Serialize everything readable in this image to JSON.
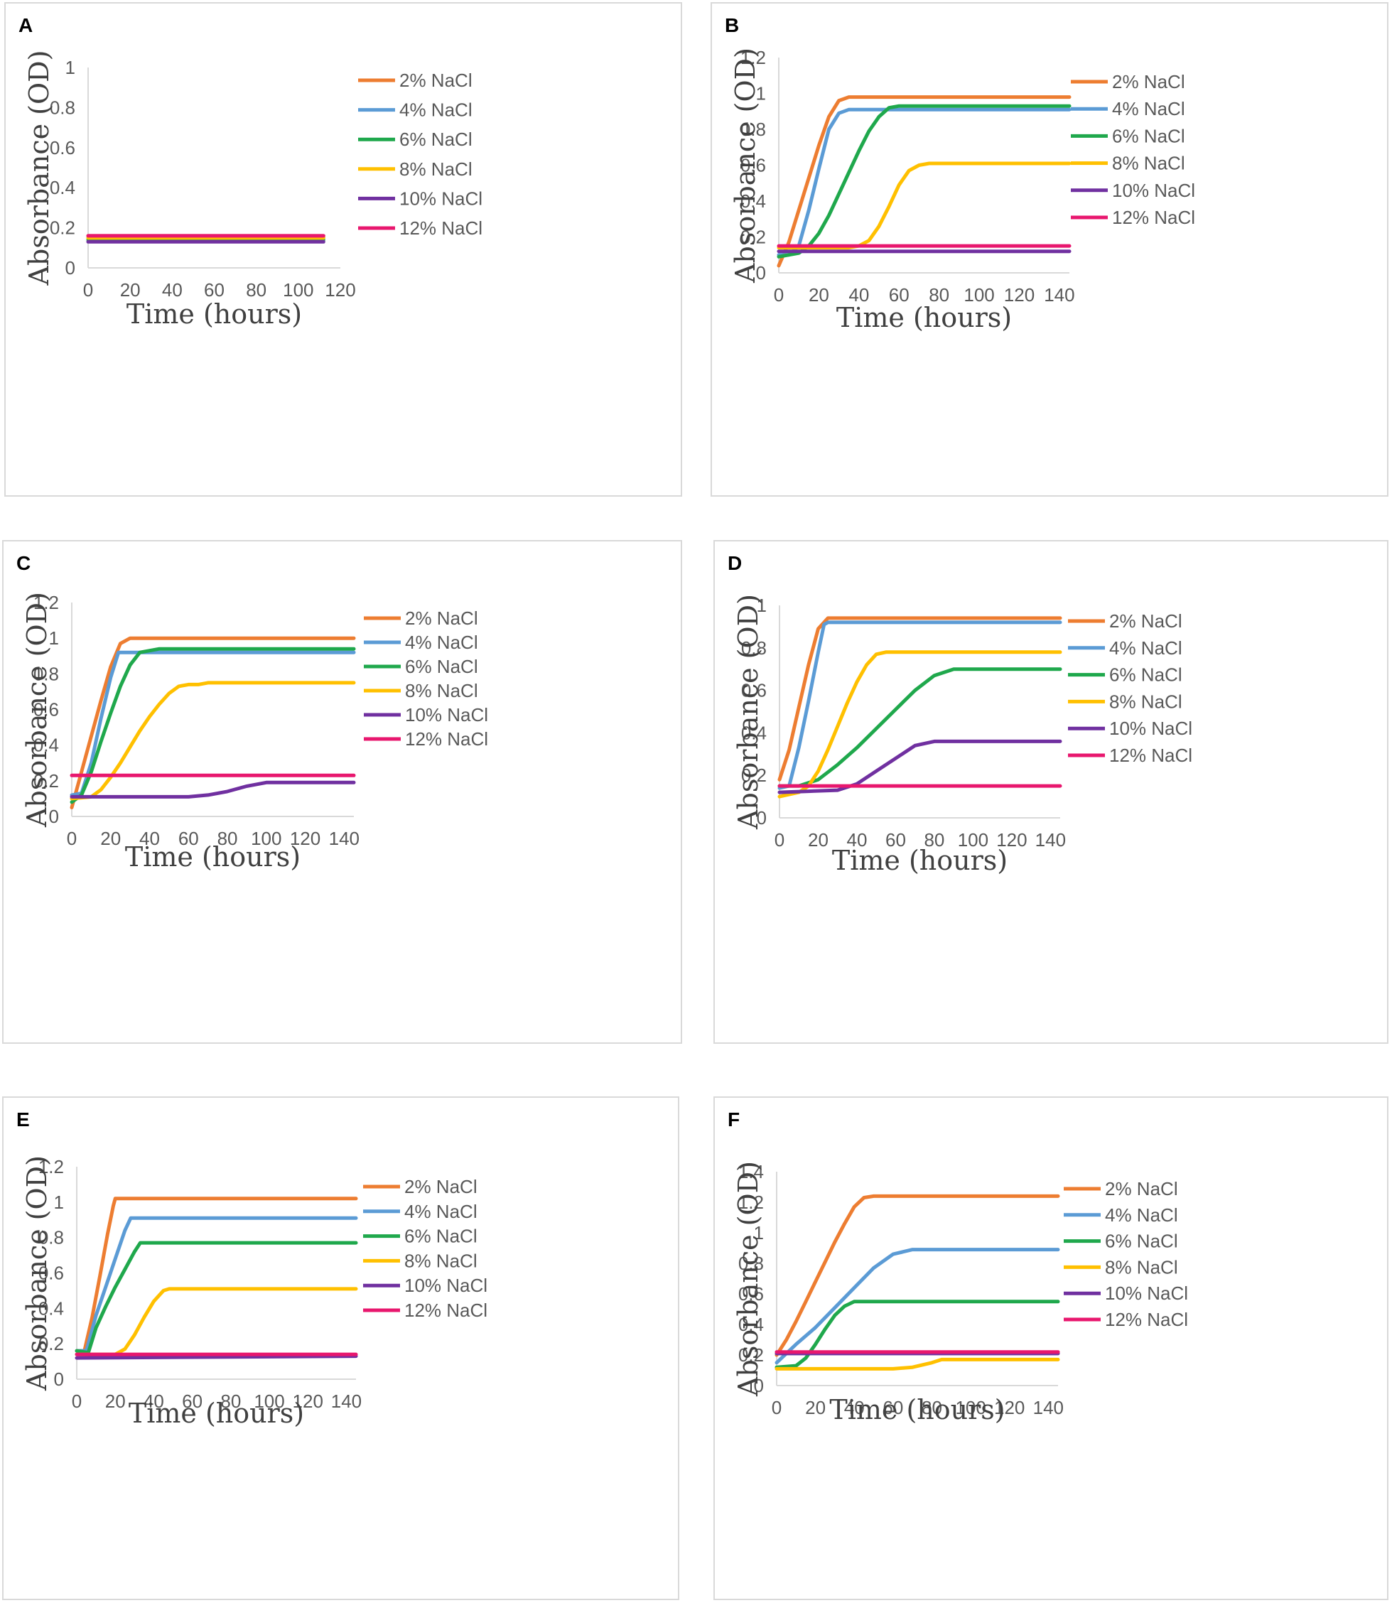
{
  "colors": {
    "2% NaCl": "#ED7D31",
    "4% NaCl": "#5B9BD5",
    "6% NaCl": "#1FA84C",
    "8% NaCl": "#FFC000",
    "10% NaCl": "#7030A0",
    "12% NaCl": "#E8176E"
  },
  "chart_data": [
    {
      "panel": "A",
      "type": "line",
      "xlabel": "Time (hours)",
      "ylabel": "Absorbance (OD)",
      "xlim": [
        0,
        120
      ],
      "xticks": [
        0,
        20,
        40,
        60,
        80,
        100,
        120
      ],
      "ylim": [
        0,
        1
      ],
      "yticks": [
        0,
        0.2,
        0.4,
        0.6,
        0.8,
        1
      ],
      "legend": [
        "2% NaCl",
        "4% NaCl",
        "6% NaCl",
        "8% NaCl",
        "10% NaCl",
        "12% NaCl"
      ],
      "series": [
        {
          "name": "2% NaCl",
          "x": [
            0,
            112
          ],
          "y": [
            0.16,
            0.16
          ]
        },
        {
          "name": "4% NaCl",
          "x": [
            0,
            112
          ],
          "y": [
            0.15,
            0.15
          ]
        },
        {
          "name": "6% NaCl",
          "x": [
            0,
            112
          ],
          "y": [
            0.14,
            0.14
          ]
        },
        {
          "name": "8% NaCl",
          "x": [
            0,
            112
          ],
          "y": [
            0.15,
            0.15
          ]
        },
        {
          "name": "10% NaCl",
          "x": [
            0,
            112
          ],
          "y": [
            0.13,
            0.13
          ]
        },
        {
          "name": "12% NaCl",
          "x": [
            0,
            112
          ],
          "y": [
            0.16,
            0.16
          ]
        }
      ]
    },
    {
      "panel": "B",
      "type": "line",
      "xlabel": "Time (hours)",
      "ylabel": "Absorbance (OD)",
      "xlim": [
        0,
        145
      ],
      "xticks": [
        0,
        20,
        40,
        60,
        80,
        100,
        120,
        140
      ],
      "ylim": [
        0,
        1.2
      ],
      "yticks": [
        0,
        0.2,
        0.4,
        0.6,
        0.8,
        1,
        1.2
      ],
      "legend": [
        "2% NaCl",
        "4% NaCl",
        "6% NaCl",
        "8% NaCl",
        "10% NaCl",
        "12% NaCl"
      ],
      "series": [
        {
          "name": "2% NaCl",
          "x": [
            0,
            5,
            10,
            15,
            20,
            25,
            30,
            35,
            40,
            145
          ],
          "y": [
            0.04,
            0.17,
            0.35,
            0.53,
            0.71,
            0.87,
            0.96,
            0.98,
            0.98,
            0.98
          ]
        },
        {
          "name": "4% NaCl",
          "x": [
            0,
            5,
            10,
            15,
            20,
            25,
            30,
            35,
            145
          ],
          "y": [
            0.1,
            0.1,
            0.15,
            0.35,
            0.58,
            0.8,
            0.89,
            0.91,
            0.91
          ]
        },
        {
          "name": "6% NaCl",
          "x": [
            0,
            10,
            15,
            20,
            25,
            30,
            35,
            40,
            45,
            50,
            55,
            60,
            65,
            145
          ],
          "y": [
            0.09,
            0.11,
            0.15,
            0.22,
            0.32,
            0.44,
            0.56,
            0.68,
            0.79,
            0.87,
            0.92,
            0.93,
            0.93,
            0.93
          ]
        },
        {
          "name": "8% NaCl",
          "x": [
            0,
            35,
            40,
            45,
            50,
            55,
            60,
            65,
            70,
            75,
            145
          ],
          "y": [
            0.14,
            0.14,
            0.15,
            0.18,
            0.26,
            0.37,
            0.49,
            0.57,
            0.6,
            0.61,
            0.61
          ]
        },
        {
          "name": "10% NaCl",
          "x": [
            0,
            145
          ],
          "y": [
            0.12,
            0.12
          ]
        },
        {
          "name": "12% NaCl",
          "x": [
            0,
            145
          ],
          "y": [
            0.15,
            0.15
          ]
        }
      ]
    },
    {
      "panel": "C",
      "type": "line",
      "xlabel": "Time (hours)",
      "ylabel": "Absorbance (OD)",
      "xlim": [
        0,
        145
      ],
      "xticks": [
        0,
        20,
        40,
        60,
        80,
        100,
        120,
        140
      ],
      "ylim": [
        0,
        1.2
      ],
      "yticks": [
        0,
        0.2,
        0.4,
        0.6,
        0.8,
        1,
        1.2
      ],
      "legend": [
        "2% NaCl",
        "4% NaCl",
        "6% NaCl",
        "8% NaCl",
        "10% NaCl",
        "12% NaCl"
      ],
      "series": [
        {
          "name": "2% NaCl",
          "x": [
            0,
            5,
            10,
            15,
            20,
            25,
            30,
            35,
            145
          ],
          "y": [
            0.05,
            0.25,
            0.45,
            0.65,
            0.84,
            0.97,
            1.0,
            1.0,
            1.0
          ]
        },
        {
          "name": "4% NaCl",
          "x": [
            0,
            5,
            10,
            15,
            20,
            24,
            26,
            145
          ],
          "y": [
            0.12,
            0.13,
            0.3,
            0.55,
            0.78,
            0.92,
            0.92,
            0.92
          ]
        },
        {
          "name": "6% NaCl",
          "x": [
            0,
            5,
            10,
            15,
            20,
            25,
            30,
            35,
            40,
            45,
            50,
            145
          ],
          "y": [
            0.08,
            0.12,
            0.25,
            0.42,
            0.58,
            0.73,
            0.85,
            0.92,
            0.93,
            0.94,
            0.94,
            0.94
          ]
        },
        {
          "name": "8% NaCl",
          "x": [
            0,
            10,
            15,
            20,
            25,
            30,
            35,
            40,
            45,
            50,
            55,
            60,
            65,
            70,
            145
          ],
          "y": [
            0.1,
            0.11,
            0.15,
            0.22,
            0.3,
            0.39,
            0.48,
            0.56,
            0.63,
            0.69,
            0.73,
            0.74,
            0.74,
            0.75,
            0.75
          ]
        },
        {
          "name": "10% NaCl",
          "x": [
            0,
            60,
            70,
            80,
            90,
            100,
            110,
            145
          ],
          "y": [
            0.11,
            0.11,
            0.12,
            0.14,
            0.17,
            0.19,
            0.19,
            0.19
          ]
        },
        {
          "name": "12% NaCl",
          "x": [
            0,
            145
          ],
          "y": [
            0.23,
            0.23
          ]
        }
      ]
    },
    {
      "panel": "D",
      "type": "line",
      "xlabel": "Time (hours)",
      "ylabel": "Absorbance (OD)",
      "xlim": [
        0,
        145
      ],
      "xticks": [
        0,
        20,
        40,
        60,
        80,
        100,
        120,
        140
      ],
      "ylim": [
        0,
        1
      ],
      "yticks": [
        0,
        0.2,
        0.4,
        0.6,
        0.8,
        1
      ],
      "legend": [
        "2% NaCl",
        "4% NaCl",
        "6% NaCl",
        "8% NaCl",
        "10% NaCl",
        "12% NaCl"
      ],
      "series": [
        {
          "name": "2% NaCl",
          "x": [
            0,
            5,
            10,
            15,
            20,
            25,
            30,
            145
          ],
          "y": [
            0.18,
            0.32,
            0.52,
            0.72,
            0.89,
            0.94,
            0.94,
            0.94
          ]
        },
        {
          "name": "4% NaCl",
          "x": [
            0,
            5,
            10,
            15,
            20,
            23,
            25,
            145
          ],
          "y": [
            0.14,
            0.15,
            0.33,
            0.55,
            0.78,
            0.91,
            0.92,
            0.92
          ]
        },
        {
          "name": "6% NaCl",
          "x": [
            0,
            10,
            20,
            30,
            40,
            50,
            60,
            70,
            80,
            90,
            100,
            145
          ],
          "y": [
            0.15,
            0.15,
            0.18,
            0.25,
            0.33,
            0.42,
            0.51,
            0.6,
            0.67,
            0.7,
            0.7,
            0.7
          ]
        },
        {
          "name": "8% NaCl",
          "x": [
            0,
            10,
            15,
            20,
            25,
            30,
            35,
            40,
            45,
            50,
            55,
            60,
            65,
            145
          ],
          "y": [
            0.1,
            0.12,
            0.15,
            0.22,
            0.32,
            0.43,
            0.54,
            0.64,
            0.72,
            0.77,
            0.78,
            0.78,
            0.78,
            0.78
          ]
        },
        {
          "name": "10% NaCl",
          "x": [
            0,
            30,
            40,
            50,
            60,
            70,
            80,
            90,
            145
          ],
          "y": [
            0.12,
            0.13,
            0.16,
            0.22,
            0.28,
            0.34,
            0.36,
            0.36,
            0.36
          ]
        },
        {
          "name": "12% NaCl",
          "x": [
            0,
            145
          ],
          "y": [
            0.15,
            0.15
          ]
        }
      ]
    },
    {
      "panel": "E",
      "type": "line",
      "xlabel": "Time (hours)",
      "ylabel": "Absorbance (OD)",
      "xlim": [
        0,
        145
      ],
      "xticks": [
        0,
        20,
        40,
        60,
        80,
        100,
        120,
        140
      ],
      "ylim": [
        0,
        1.2
      ],
      "yticks": [
        0,
        0.2,
        0.4,
        0.6,
        0.8,
        1,
        1.2
      ],
      "legend": [
        "2% NaCl",
        "4% NaCl",
        "6% NaCl",
        "8% NaCl",
        "10% NaCl",
        "12% NaCl"
      ],
      "series": [
        {
          "name": "2% NaCl",
          "x": [
            0,
            4,
            8,
            12,
            16,
            19,
            20,
            22,
            145
          ],
          "y": [
            0.16,
            0.16,
            0.35,
            0.58,
            0.82,
            0.98,
            1.02,
            1.02,
            1.02
          ]
        },
        {
          "name": "4% NaCl",
          "x": [
            0,
            5,
            10,
            15,
            20,
            25,
            28,
            30,
            145
          ],
          "y": [
            0.16,
            0.16,
            0.36,
            0.52,
            0.68,
            0.84,
            0.91,
            0.91,
            0.91
          ]
        },
        {
          "name": "6% NaCl",
          "x": [
            0,
            6,
            10,
            15,
            20,
            25,
            30,
            33,
            35,
            145
          ],
          "y": [
            0.16,
            0.15,
            0.29,
            0.41,
            0.52,
            0.62,
            0.72,
            0.77,
            0.77,
            0.77
          ]
        },
        {
          "name": "8% NaCl",
          "x": [
            0,
            20,
            25,
            30,
            35,
            40,
            45,
            48,
            50,
            145
          ],
          "y": [
            0.14,
            0.14,
            0.17,
            0.25,
            0.35,
            0.44,
            0.5,
            0.51,
            0.51,
            0.51
          ]
        },
        {
          "name": "10% NaCl",
          "x": [
            0,
            145
          ],
          "y": [
            0.12,
            0.13
          ]
        },
        {
          "name": "12% NaCl",
          "x": [
            0,
            145
          ],
          "y": [
            0.14,
            0.14
          ]
        }
      ]
    },
    {
      "panel": "F",
      "type": "line",
      "xlabel": "Time (hours)",
      "ylabel": "Absorbance (OD)",
      "xlim": [
        0,
        145
      ],
      "xticks": [
        0,
        20,
        40,
        60,
        80,
        100,
        120,
        140
      ],
      "ylim": [
        0,
        1.4
      ],
      "yticks": [
        0,
        0.2,
        0.4,
        0.6,
        0.8,
        1,
        1.2,
        1.4
      ],
      "legend": [
        "2% NaCl",
        "4% NaCl",
        "6% NaCl",
        "8% NaCl",
        "10% NaCl",
        "12% NaCl"
      ],
      "series": [
        {
          "name": "2% NaCl",
          "x": [
            0,
            5,
            10,
            15,
            20,
            25,
            30,
            35,
            40,
            45,
            50,
            55,
            145
          ],
          "y": [
            0.2,
            0.3,
            0.42,
            0.55,
            0.68,
            0.81,
            0.94,
            1.06,
            1.17,
            1.23,
            1.24,
            1.24,
            1.24
          ]
        },
        {
          "name": "4% NaCl",
          "x": [
            0,
            10,
            20,
            30,
            40,
            50,
            60,
            70,
            80,
            145
          ],
          "y": [
            0.15,
            0.27,
            0.38,
            0.51,
            0.64,
            0.77,
            0.86,
            0.89,
            0.89,
            0.89
          ]
        },
        {
          "name": "6% NaCl",
          "x": [
            0,
            10,
            15,
            20,
            25,
            30,
            35,
            40,
            45,
            50,
            145
          ],
          "y": [
            0.12,
            0.13,
            0.18,
            0.27,
            0.37,
            0.46,
            0.52,
            0.55,
            0.55,
            0.55,
            0.55
          ]
        },
        {
          "name": "8% NaCl",
          "x": [
            0,
            60,
            70,
            80,
            85,
            90,
            145
          ],
          "y": [
            0.11,
            0.11,
            0.12,
            0.15,
            0.17,
            0.17,
            0.17
          ]
        },
        {
          "name": "10% NaCl",
          "x": [
            0,
            145
          ],
          "y": [
            0.21,
            0.21
          ]
        },
        {
          "name": "12% NaCl",
          "x": [
            0,
            145
          ],
          "y": [
            0.22,
            0.22
          ]
        }
      ]
    }
  ]
}
